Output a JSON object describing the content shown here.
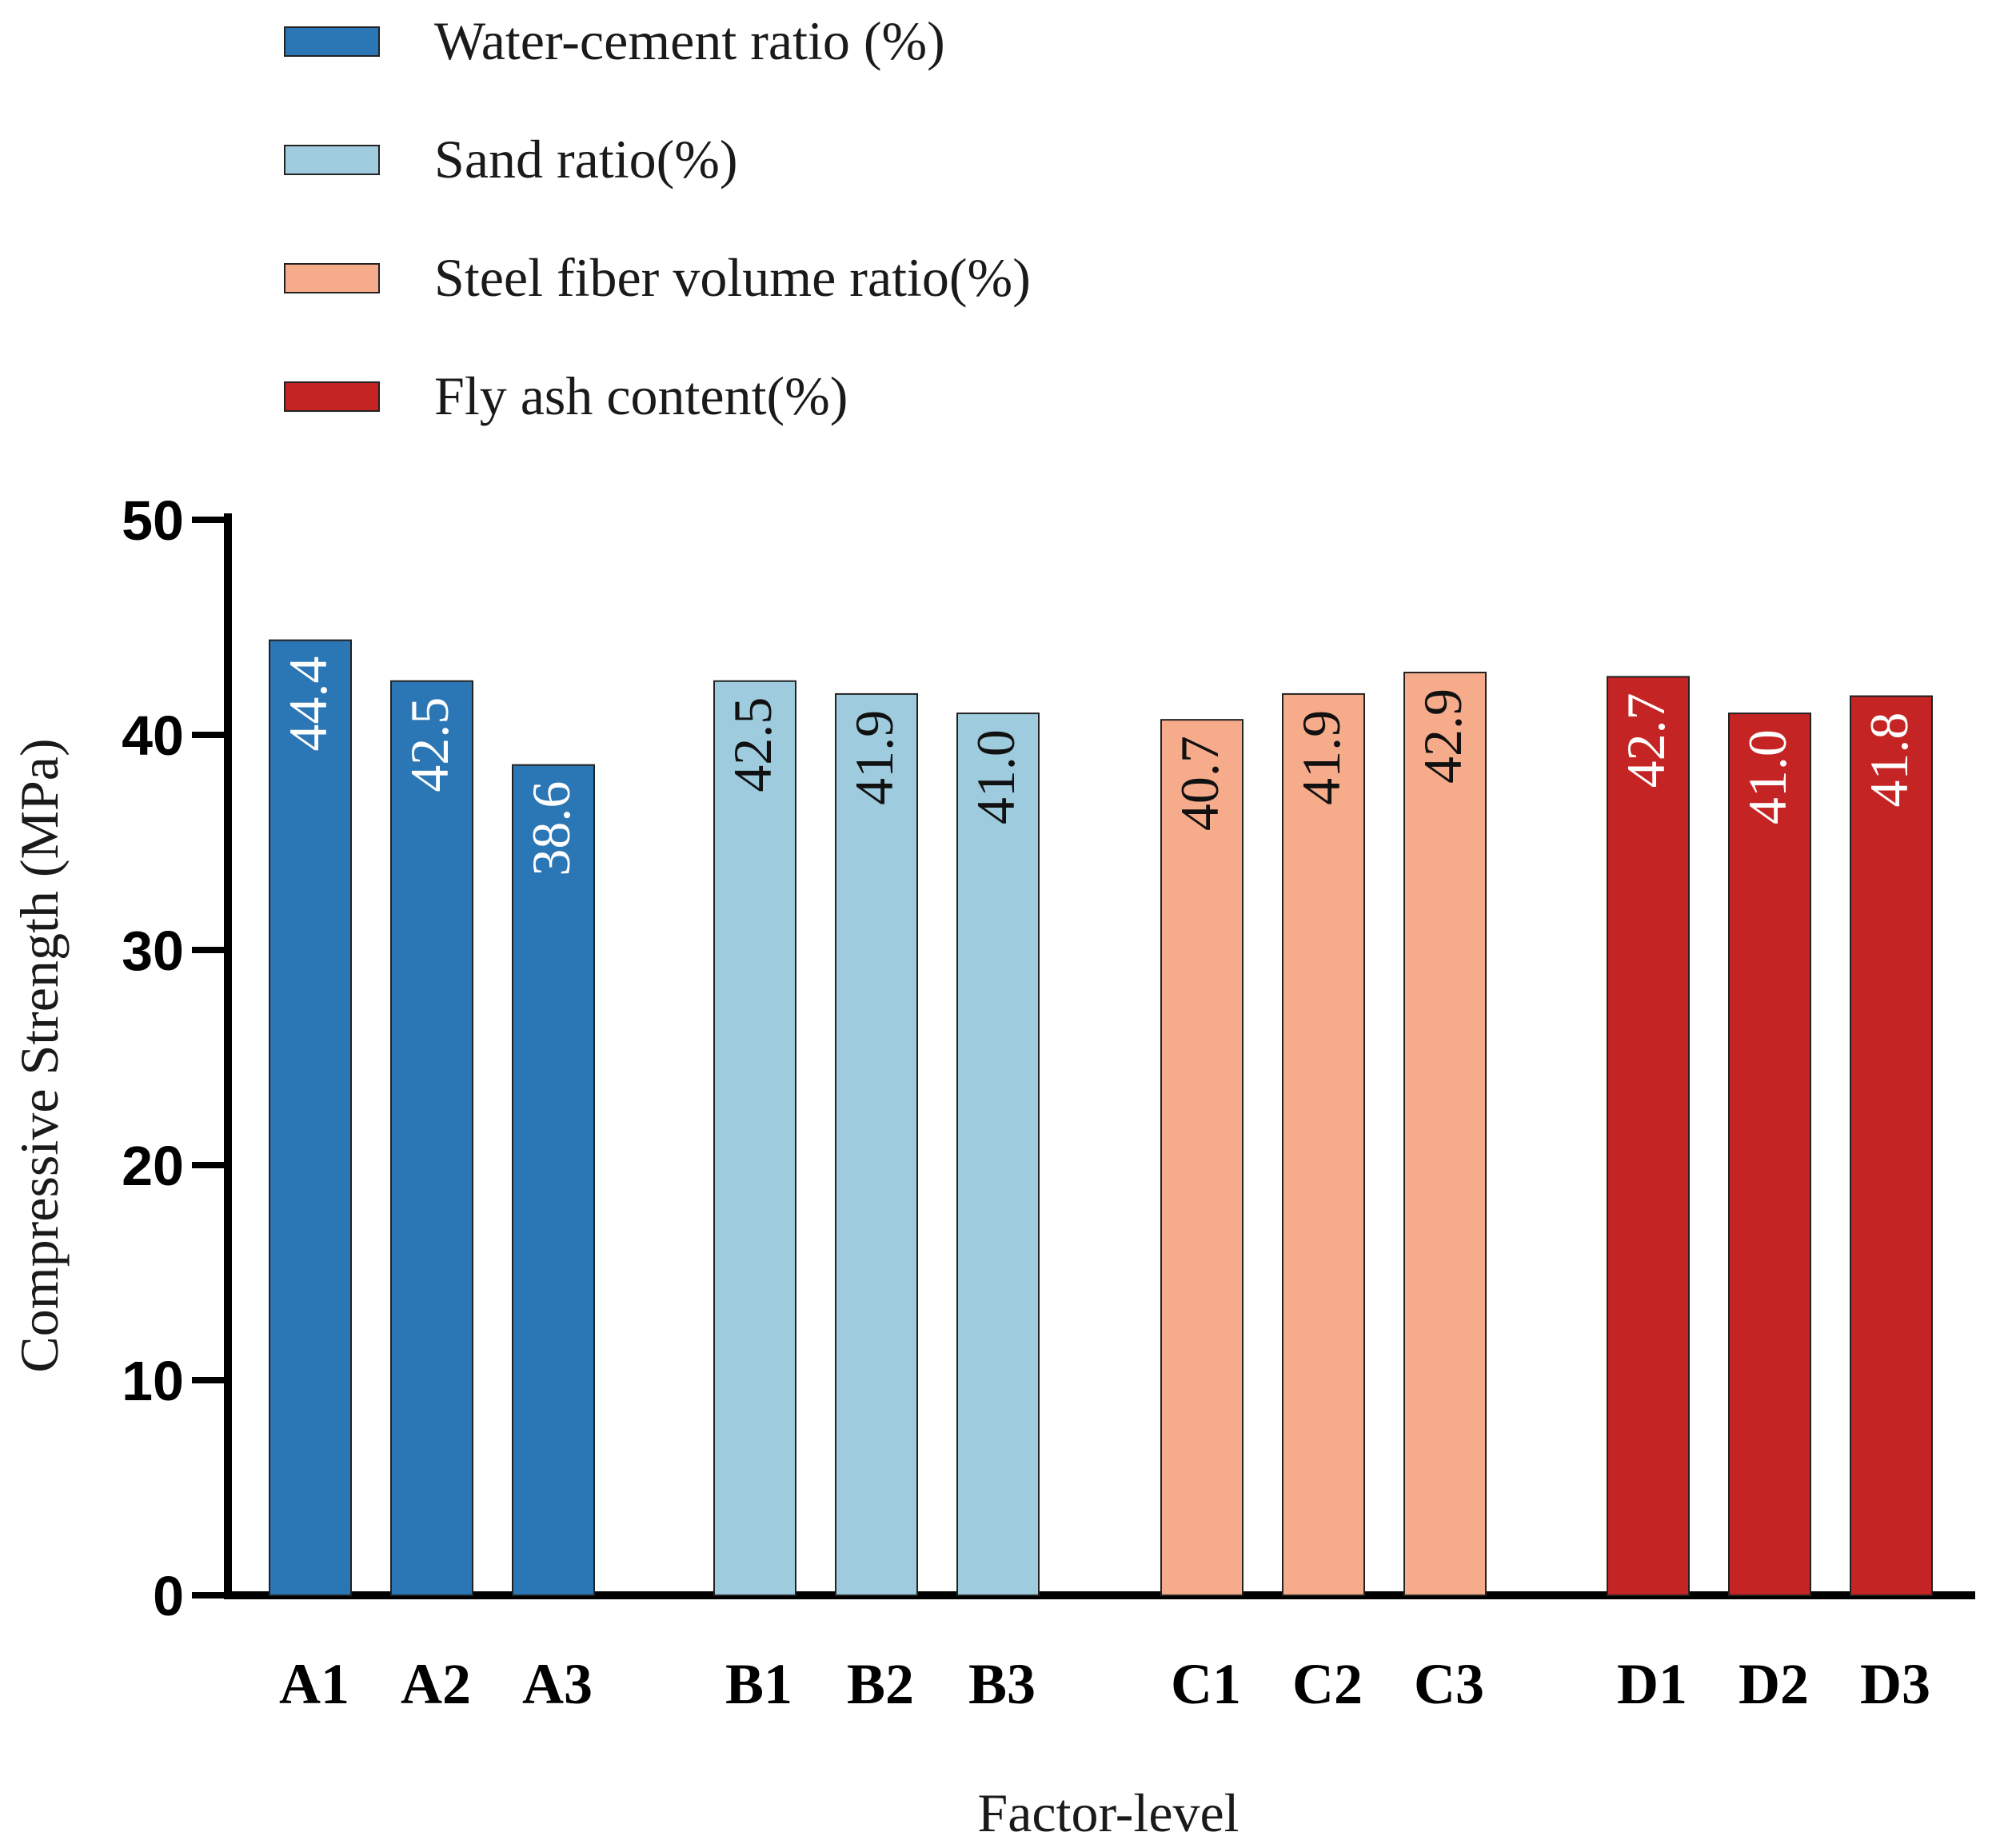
{
  "chart_data": {
    "type": "bar",
    "title": "",
    "xlabel": "Factor-level",
    "ylabel": "Compressive Strength (MPa)",
    "ylim": [
      0,
      50
    ],
    "yticks": [
      "0",
      "10",
      "20",
      "30",
      "40",
      "50"
    ],
    "grid": false,
    "legend_position": "top-left",
    "series": [
      {
        "name": "Water-cement ratio (%)",
        "color": "#2b76b5",
        "label_color": "#ffffff",
        "categories": [
          "A1",
          "A2",
          "A3"
        ],
        "values": [
          44.4,
          42.5,
          38.6
        ],
        "value_labels": [
          "44.4",
          "42.5",
          "38.6"
        ]
      },
      {
        "name": "Sand ratio(%)",
        "color": "#9ecbdd",
        "label_color": "#111111",
        "categories": [
          "B1",
          "B2",
          "B3"
        ],
        "values": [
          42.5,
          41.9,
          41.0
        ],
        "value_labels": [
          "42.5",
          "41.9",
          "41.0"
        ]
      },
      {
        "name": "Steel fiber volume ratio(%)",
        "color": "#f6ab8b",
        "label_color": "#111111",
        "categories": [
          "C1",
          "C2",
          "C3"
        ],
        "values": [
          40.7,
          41.9,
          42.9
        ],
        "value_labels": [
          "40.7",
          "41.9",
          "42.9"
        ]
      },
      {
        "name": "Fly ash content(%)",
        "color": "#c52424",
        "label_color": "#ffffff",
        "categories": [
          "D1",
          "D2",
          "D3"
        ],
        "values": [
          42.7,
          41.0,
          41.8
        ],
        "value_labels": [
          "42.7",
          "41.0",
          "41.8"
        ]
      }
    ]
  }
}
